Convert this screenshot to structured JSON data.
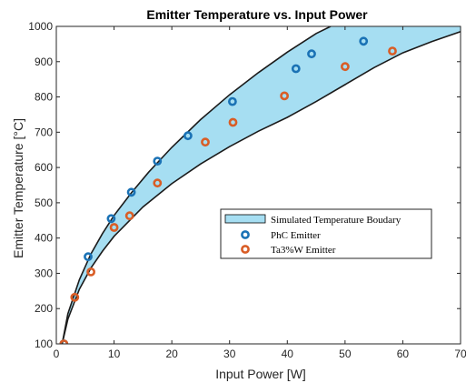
{
  "chart_data": {
    "type": "scatter",
    "title": "Emitter Temperature vs. Input Power",
    "xlabel": "Input Power [W]",
    "ylabel": "Emitter Temperature [°C]",
    "xlim": [
      0,
      70
    ],
    "ylim": [
      100,
      1000
    ],
    "xticks": [
      "0",
      "10",
      "20",
      "30",
      "40",
      "50",
      "60",
      "70"
    ],
    "yticks": [
      "100",
      "200",
      "300",
      "400",
      "500",
      "600",
      "700",
      "800",
      "900",
      "1000"
    ],
    "grid": false,
    "legend_position": "center-right",
    "band": {
      "name": "Simulated Temperature Boudary",
      "color": "#a6def2",
      "upper": {
        "x": [
          1,
          2,
          4,
          6,
          8,
          10,
          13,
          16,
          20,
          25,
          30,
          35,
          40,
          45,
          47.5
        ],
        "y": [
          100,
          185,
          282,
          355,
          413,
          464,
          528,
          587,
          657,
          736,
          806,
          869,
          927,
          980,
          1000
        ]
      },
      "lower": {
        "x": [
          1,
          2,
          4,
          6,
          8,
          10,
          15,
          20,
          25,
          30,
          35,
          40,
          45,
          50,
          55,
          60,
          65,
          70
        ],
        "y": [
          100,
          170,
          255,
          315,
          363,
          405,
          488,
          554,
          610,
          659,
          703,
          742,
          787,
          835,
          883,
          925,
          957,
          985
        ]
      }
    },
    "series": [
      {
        "name": "PhC Emitter",
        "color": "#1a72b5",
        "x": [
          1.3,
          5.5,
          9.5,
          13,
          17.5,
          22.8,
          30.5,
          41.5,
          44.2,
          53.2
        ],
        "y": [
          100,
          347,
          455,
          530,
          618,
          690,
          787,
          880,
          922,
          958
        ]
      },
      {
        "name": "Ta3%W Emitter",
        "color": "#d95d26",
        "x": [
          1.3,
          3.2,
          6,
          10,
          12.7,
          17.5,
          25.8,
          30.6,
          39.5,
          50,
          58.2
        ],
        "y": [
          100,
          232,
          304,
          430,
          463,
          556,
          672,
          728,
          803,
          886,
          930
        ]
      }
    ]
  }
}
